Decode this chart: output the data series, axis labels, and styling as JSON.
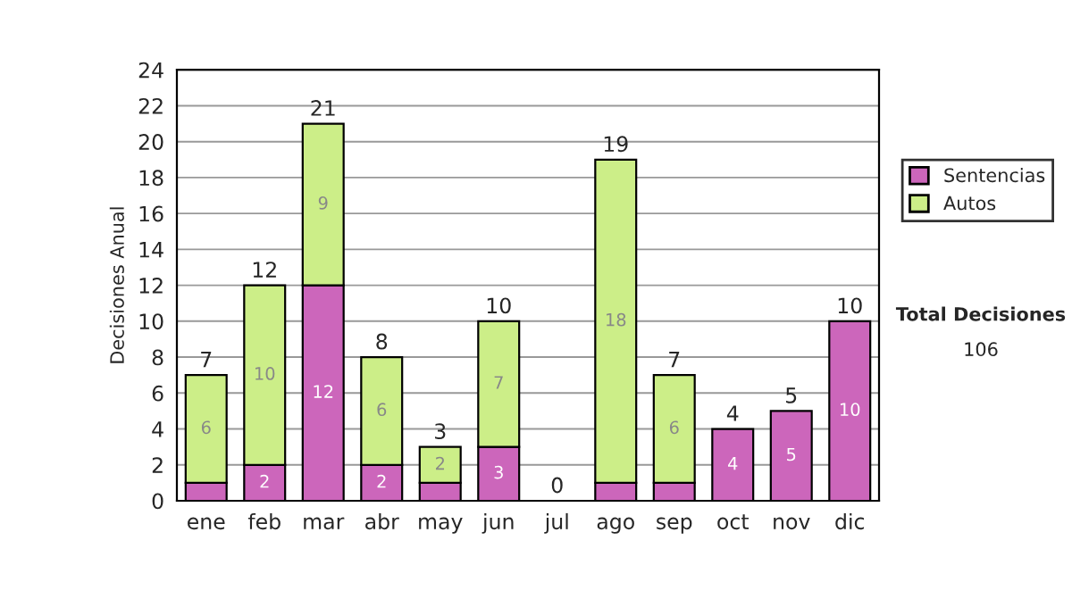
{
  "chart_data": {
    "type": "bar",
    "stacked": true,
    "ylabel": "Decisiones Anual",
    "categories": [
      "ene",
      "feb",
      "mar",
      "abr",
      "may",
      "jun",
      "jul",
      "ago",
      "sep",
      "oct",
      "nov",
      "dic"
    ],
    "series": [
      {
        "name": "Sentencias",
        "color": "#cc66bb",
        "values": [
          1,
          2,
          12,
          2,
          1,
          3,
          0,
          1,
          1,
          4,
          5,
          10
        ],
        "value_labels": [
          null,
          "2",
          "12",
          "2",
          null,
          "3",
          null,
          null,
          null,
          "4",
          "5",
          "10"
        ]
      },
      {
        "name": "Autos",
        "color": "#ccee88",
        "values": [
          6,
          10,
          9,
          6,
          2,
          7,
          0,
          18,
          6,
          0,
          0,
          0
        ],
        "value_labels": [
          "6",
          "10",
          "9",
          "6",
          "2",
          "7",
          null,
          "18",
          "6",
          null,
          null,
          null
        ]
      }
    ],
    "totals": [
      "7",
      "12",
      "21",
      "8",
      "3",
      "10",
      "0",
      "19",
      "7",
      "4",
      "5",
      "10"
    ],
    "ylim": [
      0,
      24
    ],
    "yticks": [
      0,
      2,
      4,
      6,
      8,
      10,
      12,
      14,
      16,
      18,
      20,
      22,
      24
    ],
    "grid": "y",
    "legend": "right",
    "annotations": [
      "Total Decisiones",
      "106"
    ]
  }
}
